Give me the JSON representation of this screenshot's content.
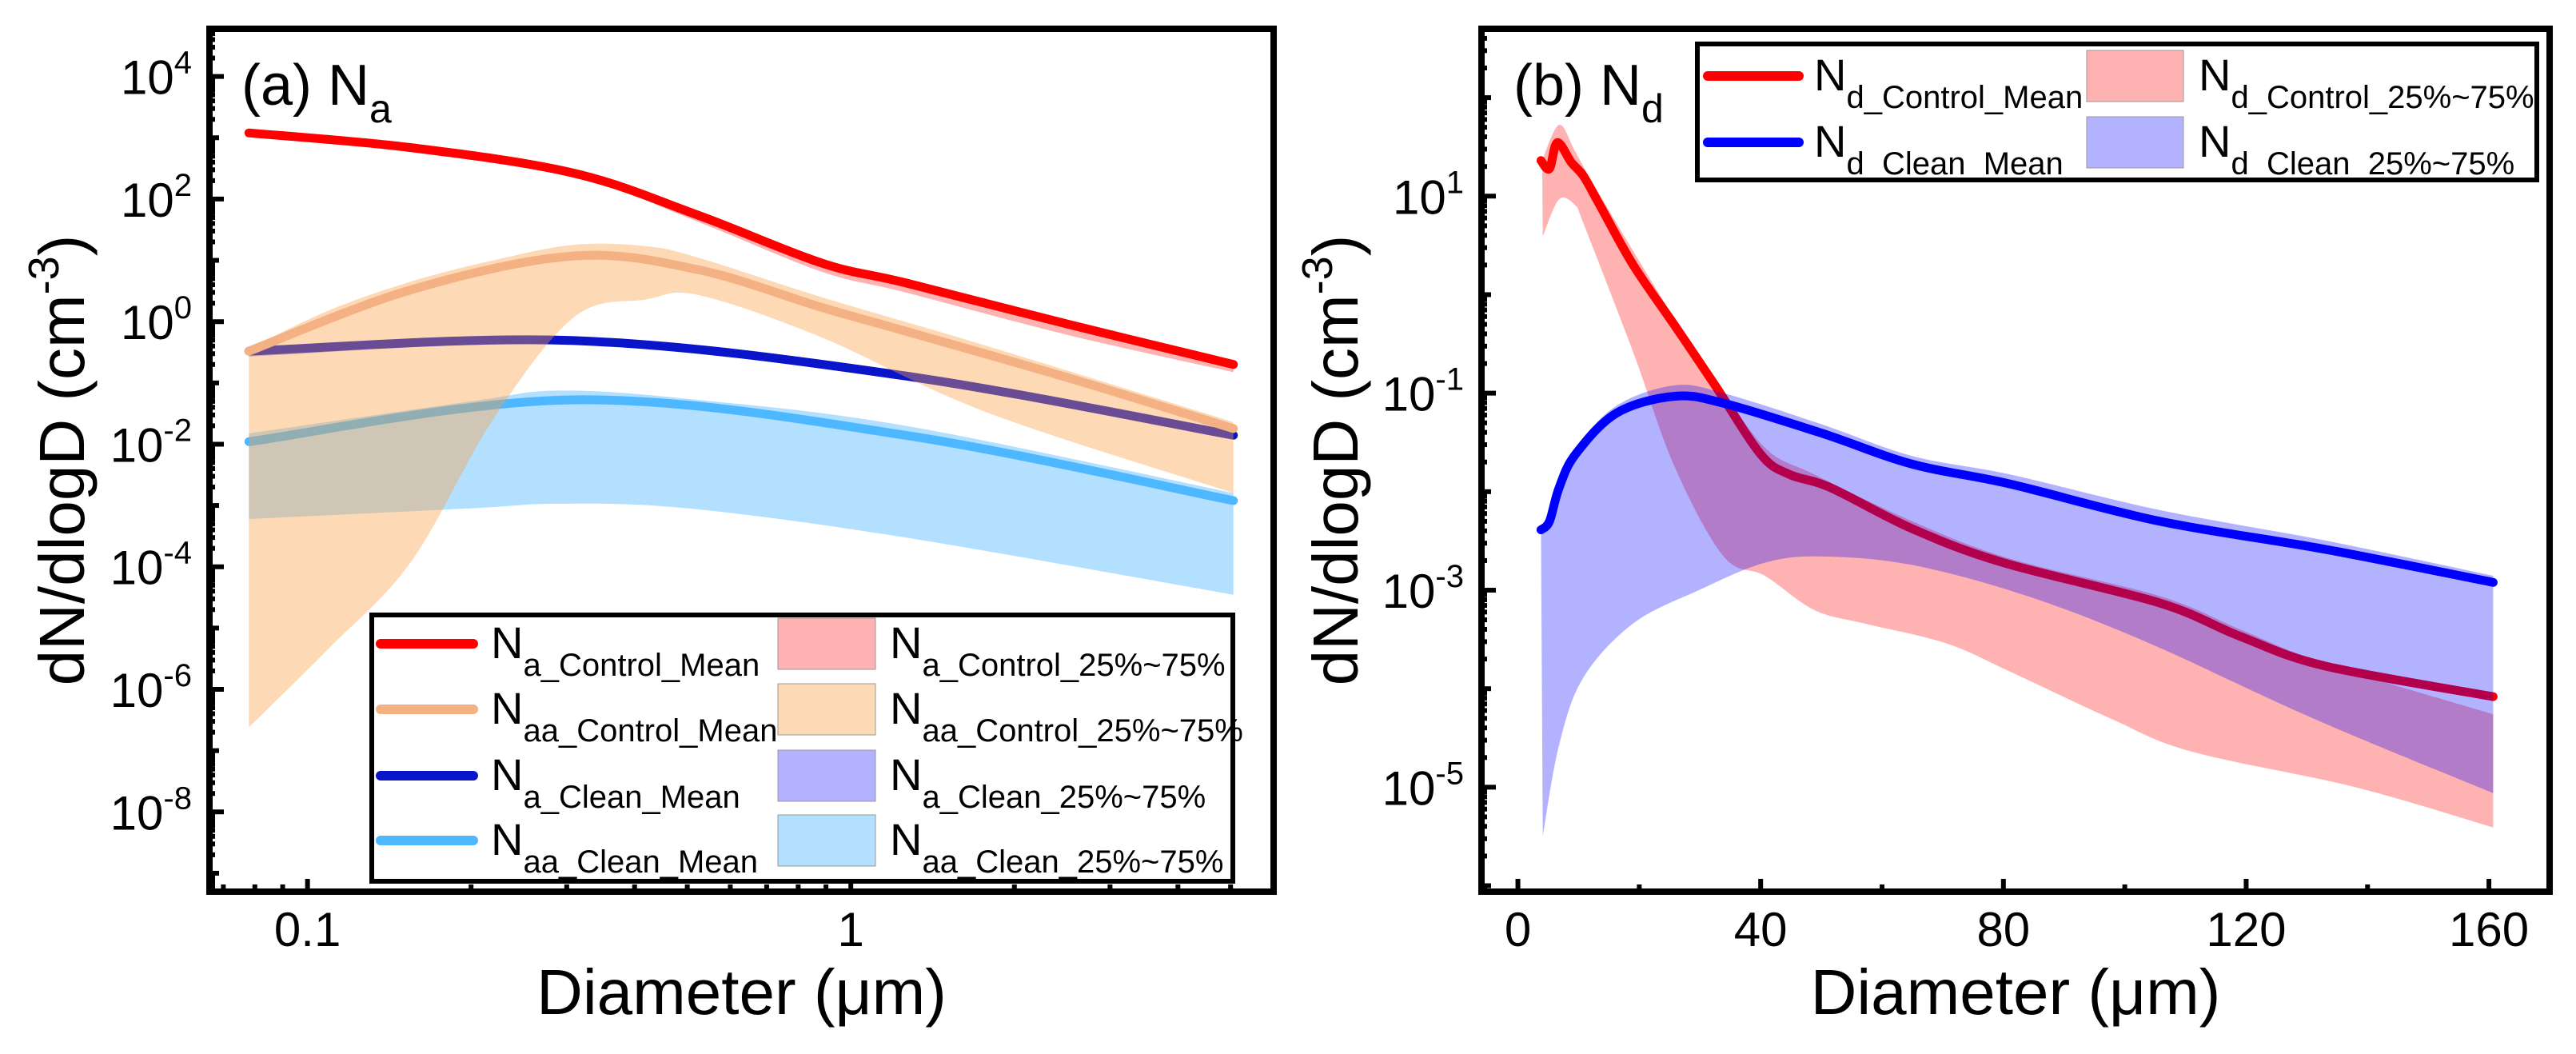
{
  "chart_data": [
    {
      "type": "area",
      "panel_label": {
        "base": "(a) N",
        "sub": "a"
      },
      "xlabel": "Diameter (μm)",
      "ylabel": {
        "main": "dN/dlogD (cm",
        "sup": "-3",
        "end": ")"
      },
      "xscale": "log",
      "yscale": "log",
      "xlim": [
        0.066,
        6.0
      ],
      "ylim": [
        5e-10,
        60000.0
      ],
      "xticks": [
        0.1,
        1
      ],
      "xtick_labels": [
        "0.1",
        "1"
      ],
      "yticks": [
        10000.0,
        100.0,
        1,
        0.01,
        0.0001,
        1e-06,
        1e-08
      ],
      "ytick_labels": [
        {
          "base": "10",
          "exp": "4"
        },
        {
          "base": "10",
          "exp": "2"
        },
        {
          "base": "10",
          "exp": "0"
        },
        {
          "base": "10",
          "exp": "-2"
        },
        {
          "base": "10",
          "exp": "-4"
        },
        {
          "base": "10",
          "exp": "-6"
        },
        {
          "base": "10",
          "exp": "-8"
        }
      ],
      "legend": "bottom-right",
      "grid": false,
      "series": [
        {
          "mean_label": {
            "base": "N",
            "sub": "a_Control_Mean"
          },
          "band_label": {
            "base": "N",
            "sub": "a_Control_25%~75%"
          },
          "color": "#ff0000",
          "band_color": "rgba(255,0,0,0.3)",
          "x": [
            0.078,
            0.155,
            0.31,
            0.525,
            0.885,
            1.26,
            2.52,
            5.06
          ],
          "y": [
            1200,
            690,
            263,
            54,
            9,
            4.3,
            0.9,
            0.2
          ],
          "band_upper": {
            "x": [
              0.078,
              0.155,
              0.31,
              0.525,
              0.885,
              1.26,
              2.52,
              5.06
            ],
            "y": [
              1250,
              700,
              270,
              56,
              9.5,
              4.6,
              0.95,
              0.22
            ]
          },
          "band_lower": {
            "x": [
              0.078,
              0.155,
              0.31,
              0.525,
              0.885,
              1.26,
              2.52,
              5.06
            ],
            "y": [
              1100,
              640,
              240,
              42,
              6.5,
              3.0,
              0.6,
              0.15
            ]
          }
        },
        {
          "mean_label": {
            "base": "N",
            "sub": "aa_Control_Mean"
          },
          "band_label": {
            "base": "N",
            "sub": "aa_Control_25%~75%"
          },
          "color": "#f4b183",
          "band_color": "rgba(250,160,70,0.4)",
          "x": [
            0.078,
            0.155,
            0.31,
            0.525,
            0.885,
            1.26,
            2.52,
            5.06
          ],
          "y": [
            0.33,
            3.3,
            11.8,
            7,
            1.7,
            0.7,
            0.12,
            0.018
          ],
          "band_upper": {
            "x": [
              0.078,
              0.109,
              0.155,
              0.22,
              0.31,
              0.42,
              0.525,
              0.885,
              1.78,
              5.06
            ],
            "y": [
              0.36,
              1.5,
              4.5,
              10,
              18,
              17,
              11,
              2.5,
              0.4,
              0.023
            ]
          },
          "band_lower": {
            "x": [
              0.078,
              0.109,
              0.155,
              0.22,
              0.31,
              0.42,
              0.525,
              0.885,
              1.78,
              5.06
            ],
            "y": [
              2.4e-07,
              4.5e-06,
              0.00012,
              0.026,
              1.2,
              2.3,
              2.7,
              0.55,
              0.033,
              0.0016
            ]
          }
        },
        {
          "mean_label": {
            "base": "N",
            "sub": "a_Clean_Mean"
          },
          "band_label": {
            "base": "N",
            "sub": "a_Clean_25%~75%"
          },
          "color": "#0a14c8",
          "band_color": "rgba(0,0,255,0.3)",
          "x": [
            0.078,
            0.31,
            1.26,
            5.06
          ],
          "y": [
            0.33,
            0.49,
            0.13,
            0.014
          ],
          "band_upper": {
            "x": [
              0.078,
              0.31,
              1.26,
              5.06
            ],
            "y": [
              0.36,
              0.55,
              0.15,
              0.016
            ]
          },
          "band_lower": {
            "x": [
              0.078,
              0.31,
              1.26,
              5.06
            ],
            "y": [
              0.27,
              0.42,
              0.11,
              0.012
            ]
          }
        },
        {
          "mean_label": {
            "base": "N",
            "sub": "aa_Clean_Mean"
          },
          "band_label": {
            "base": "N",
            "sub": "aa_Clean_25%~75%"
          },
          "color": "#4db8ff",
          "band_color": "rgba(38,166,255,0.35)",
          "x": [
            0.078,
            0.31,
            1.26,
            5.06
          ],
          "y": [
            0.011,
            0.053,
            0.014,
            0.0012
          ],
          "band_upper": {
            "x": [
              0.078,
              0.2,
              0.29,
              0.5,
              1.26,
              5.06
            ],
            "y": [
              0.015,
              0.05,
              0.075,
              0.055,
              0.02,
              0.0016
            ]
          },
          "band_lower": {
            "x": [
              0.078,
              0.2,
              0.29,
              0.5,
              1.26,
              5.06
            ],
            "y": [
              0.0006,
              0.0009,
              0.00107,
              0.0009,
              0.0003,
              3.5e-05
            ]
          }
        }
      ]
    },
    {
      "type": "area",
      "panel_label": {
        "base": "(b) N",
        "sub": "d"
      },
      "xlabel": "Diameter (μm)",
      "ylabel": {
        "main": "dN/dlogD (cm",
        "sup": "-3",
        "end": ")"
      },
      "xscale": "linear",
      "yscale": "log",
      "xlim": [
        -6,
        170
      ],
      "ylim": [
        8.7e-07,
        500
      ],
      "xticks": [
        0,
        40,
        80,
        120,
        160
      ],
      "xtick_labels": [
        "0",
        "40",
        "80",
        "120",
        "160"
      ],
      "yticks": [
        10,
        0.1,
        0.001,
        1e-05
      ],
      "ytick_labels": [
        {
          "base": "10",
          "exp": "1"
        },
        {
          "base": "10",
          "exp": "-1"
        },
        {
          "base": "10",
          "exp": "-3"
        },
        {
          "base": "10",
          "exp": "-5"
        }
      ],
      "legend": "top-right",
      "grid": false,
      "series": [
        {
          "mean_label": {
            "base": "N",
            "sub": "d_Control_Mean"
          },
          "band_label": {
            "base": "N",
            "sub": "d_Control_25%~75%"
          },
          "color": "#ff0000",
          "band_color": "rgba(255,0,0,0.3)",
          "x": [
            3.8,
            5.2,
            6.5,
            8.8,
            10.8,
            13.6,
            19,
            25.8,
            32.5,
            40,
            44.7,
            51.5,
            65,
            80,
            105.8,
            119,
            133,
            160.7
          ],
          "y": [
            23,
            19,
            35,
            22,
            16,
            7.9,
            2,
            0.49,
            0.12,
            0.024,
            0.015,
            0.011,
            0.0042,
            0.0019,
            0.00074,
            0.00034,
            0.00017,
            8.3e-05
          ],
          "band_upper": {
            "x": [
              4,
              6.8,
              9.5,
              13.6,
              25.8,
              32.5,
              40.7,
              48.8,
              65,
              81,
              105.8,
              119,
              133,
              160.7
            ],
            "y": [
              23,
              53,
              28,
              10,
              0.57,
              0.14,
              0.028,
              0.015,
              0.005,
              0.0021,
              0.00087,
              0.0004,
              0.00018,
              5.5e-05
            ]
          },
          "band_lower": {
            "x": [
              4.1,
              6.8,
              9.5,
              10.8,
              19,
              25.8,
              33.9,
              40.7,
              48.8,
              57,
              70.5,
              81,
              97.6,
              111,
              138,
              160.7
            ],
            "y": [
              3.9,
              9.3,
              8,
              5.3,
              0.26,
              0.018,
              0.0022,
              0.0014,
              0.00063,
              0.00046,
              0.00029,
              0.00015,
              5e-05,
              2.3e-05,
              1e-05,
              3.9e-06
            ]
          }
        },
        {
          "mean_label": {
            "base": "N",
            "sub": "d_Clean_Mean"
          },
          "band_label": {
            "base": "N",
            "sub": "d_Clean_25%~75%"
          },
          "color": "#0000ff",
          "band_color": "rgba(0,0,255,0.3)",
          "x": [
            3.8,
            5.2,
            6.8,
            9.5,
            16.3,
            25.8,
            33.9,
            50.2,
            65,
            81,
            105.8,
            133,
            160.7
          ],
          "y": [
            0.0041,
            0.005,
            0.011,
            0.024,
            0.063,
            0.093,
            0.079,
            0.039,
            0.019,
            0.012,
            0.005,
            0.0026,
            0.0012
          ],
          "band_upper": {
            "x": [
              3.8,
              5.2,
              6.8,
              9.5,
              16.3,
              25.8,
              33.9,
              50.2,
              65,
              81,
              105.8,
              133,
              160.7
            ],
            "y": [
              0.0045,
              0.0055,
              0.013,
              0.028,
              0.075,
              0.12,
              0.1,
              0.048,
              0.023,
              0.015,
              0.0065,
              0.0032,
              0.0014
            ]
          },
          "band_lower": {
            "x": [
              4.1,
              6.8,
              10.8,
              19,
              29.8,
              40.7,
              50.2,
              65,
              84,
              104,
              131,
              160.7
            ],
            "y": [
              3.2e-06,
              2.7e-05,
              0.00013,
              0.00046,
              0.001,
              0.0019,
              0.0022,
              0.0018,
              0.00087,
              0.00029,
              5e-05,
              8.7e-06
            ]
          }
        }
      ]
    }
  ]
}
